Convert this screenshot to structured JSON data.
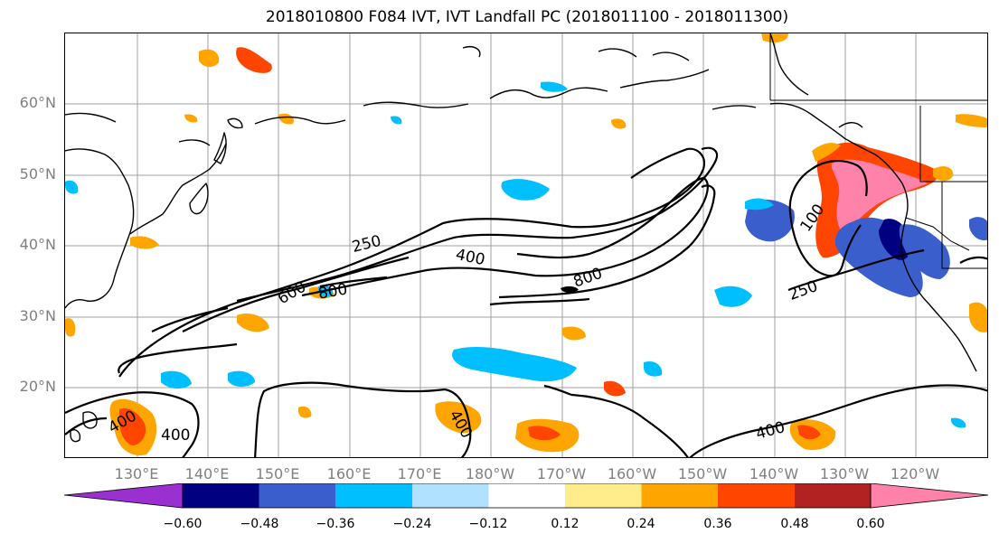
{
  "title": "2018010800 F084 IVT, IVT Landfall PC (2018011100 - 2018011300)",
  "lat_labels": [
    "60°N",
    "50°N",
    "40°N",
    "30°N",
    "20°N"
  ],
  "lon_labels": [
    "130°E",
    "140°E",
    "150°E",
    "160°E",
    "170°E",
    "180°W",
    "170°W",
    "160°W",
    "150°W",
    "140°W",
    "130°W",
    "120°W"
  ],
  "contour_labels": {
    "label_250_west": "250",
    "label_400_mid": "400",
    "label_600": "600",
    "label_800_west": "800",
    "label_800_east": "800",
    "label_400_sw1": "400",
    "label_400_sw2": "400",
    "label_400_south": "400",
    "label_400_se": "400",
    "label_100": "100",
    "label_250_east": "250"
  },
  "colorbar": {
    "colors": [
      "#9b30d0",
      "#000080",
      "#3a5fcd",
      "#00bfff",
      "#b0e2ff",
      "#ffffff",
      "#ffec8b",
      "#ffa500",
      "#ff4500",
      "#b22222",
      "#ff82ab"
    ],
    "ticks": [
      "−0.60",
      "−0.48",
      "−0.36",
      "−0.24",
      "−0.12",
      "0.12",
      "0.24",
      "0.36",
      "0.48",
      "0.60"
    ]
  },
  "colors": {
    "contour": "#000000",
    "coastline": "#000000",
    "grid": "#a0a0a0",
    "axis_label": "#808080"
  }
}
